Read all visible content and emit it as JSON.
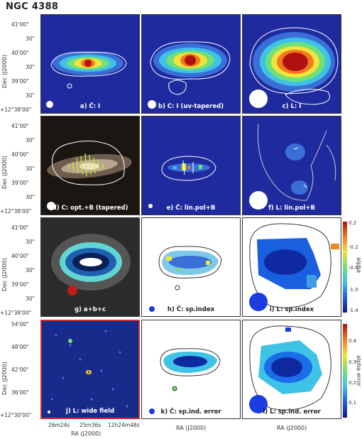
{
  "figure": {
    "title": "NGC 4388",
    "panels": [
      {
        "id": "a",
        "label": "a) C̃: I"
      },
      {
        "id": "b",
        "label": "b) C: I (uv-tapered)"
      },
      {
        "id": "c",
        "label": "c) L: I"
      },
      {
        "id": "d",
        "label": "d) C: opt.+B (tapered)"
      },
      {
        "id": "e",
        "label": "e) C̃: lin.pol+B"
      },
      {
        "id": "f",
        "label": "f) L: lin.pol+B"
      },
      {
        "id": "g",
        "label": "g) a+b+c"
      },
      {
        "id": "h",
        "label": "h) C̃: sp.index"
      },
      {
        "id": "i",
        "label": "i) L: sp.index"
      },
      {
        "id": "j",
        "label": "j) L: wide field"
      },
      {
        "id": "k",
        "label": "k) C̃: sp.ind. error"
      },
      {
        "id": "l",
        "label": "l) L: sp.ind. error"
      }
    ],
    "y_axis_title": "Dec (J2000)",
    "y_ticks_top": [
      "41'00\"",
      "30\"",
      "40'00\"",
      "30\"",
      "39'00\"",
      "30\"",
      "+12°38'00\""
    ],
    "y_ticks_wide": [
      "54'00\"",
      "48'00\"",
      "42'00\"",
      "36'00\"",
      "+12°30'00\""
    ],
    "x_axis_title": "RA (J2000)",
    "x_ticks_wide": [
      "26m24s",
      "25m36s",
      "12h24m48s"
    ],
    "colorbar_alpha": {
      "title": "alpha",
      "ticks": [
        "0.2",
        "-0.2",
        "-0.6",
        "-1.0",
        "-1.4"
      ]
    },
    "colorbar_error": {
      "title": "alpha error",
      "ticks": [
        "0.4",
        "0.3",
        "0.2",
        "0.1"
      ]
    }
  }
}
